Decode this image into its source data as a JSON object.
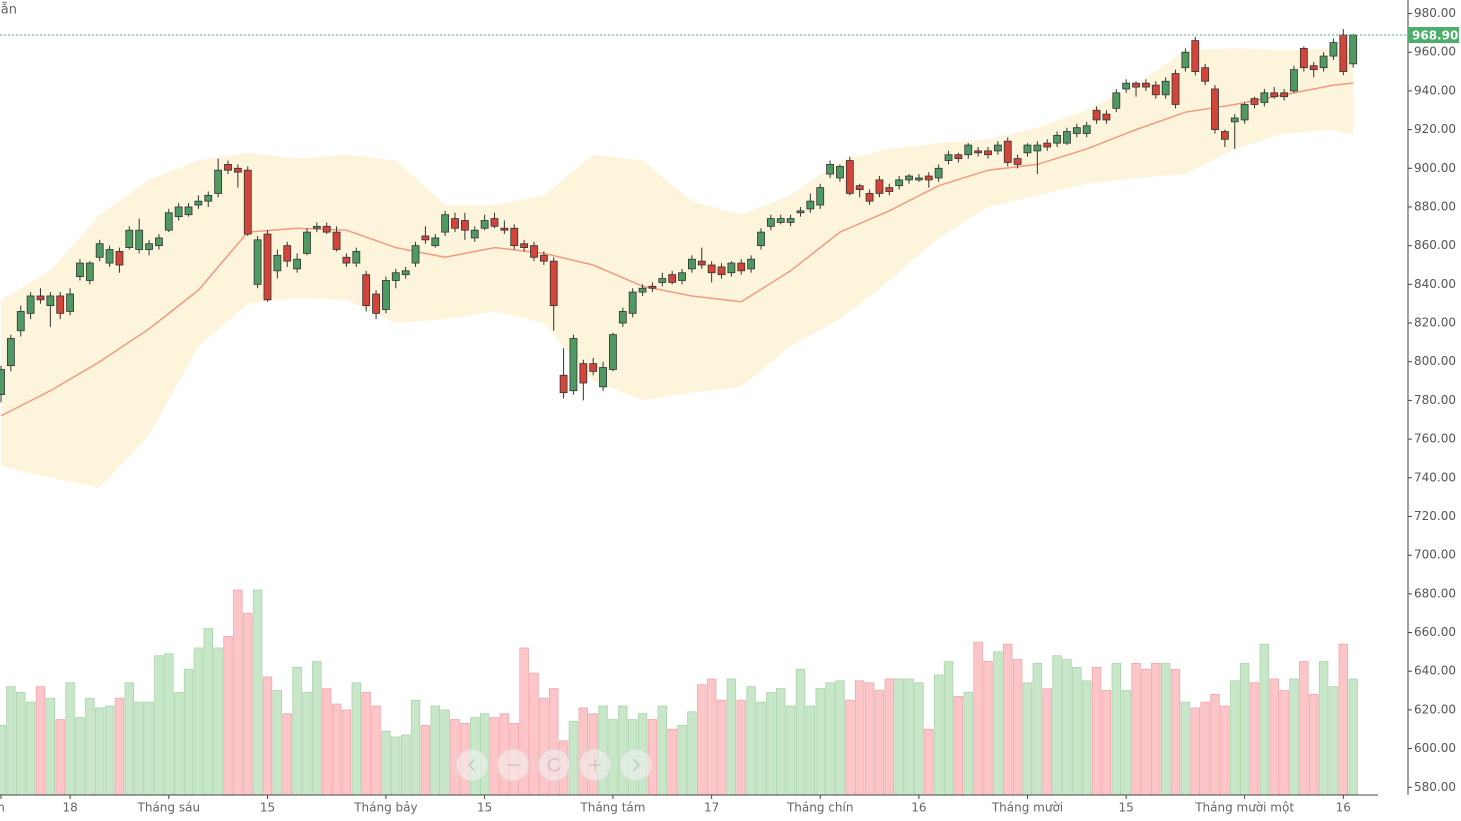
{
  "chart_data": {
    "type": "candlestick",
    "title": "sẵn",
    "categories": [
      "n",
      null,
      null,
      null,
      null,
      null,
      null,
      "18",
      null,
      null,
      null,
      null,
      null,
      null,
      null,
      null,
      null,
      "Tháng sáu",
      null,
      null,
      null,
      null,
      null,
      null,
      null,
      null,
      null,
      "15",
      null,
      null,
      null,
      null,
      null,
      null,
      null,
      null,
      null,
      null,
      null,
      "Tháng bảy",
      null,
      null,
      null,
      null,
      null,
      null,
      null,
      null,
      null,
      "15",
      null,
      null,
      null,
      null,
      null,
      null,
      null,
      null,
      null,
      null,
      null,
      null,
      "Tháng tám",
      null,
      null,
      null,
      null,
      null,
      null,
      null,
      null,
      null,
      "17",
      null,
      null,
      null,
      null,
      null,
      null,
      null,
      null,
      null,
      null,
      "Tháng chín",
      null,
      null,
      null,
      null,
      null,
      null,
      null,
      null,
      null,
      "16",
      null,
      null,
      null,
      null,
      null,
      null,
      null,
      null,
      null,
      null,
      "Tháng mười",
      null,
      null,
      null,
      null,
      null,
      null,
      null,
      null,
      null,
      "15",
      null,
      null,
      null,
      null,
      null,
      null,
      null,
      null,
      null,
      null,
      null,
      "Tháng mười một",
      null,
      null,
      null,
      null,
      null,
      null,
      null,
      null,
      null,
      "16",
      null
    ],
    "ohlc": [
      [
        783,
        798,
        779,
        796
      ],
      [
        798,
        814,
        795,
        812
      ],
      [
        816,
        829,
        813,
        826
      ],
      [
        825,
        836,
        822,
        834
      ],
      [
        834,
        838,
        830,
        832
      ],
      [
        829,
        836,
        818,
        834
      ],
      [
        834,
        836,
        822,
        825
      ],
      [
        826,
        838,
        824,
        835
      ],
      [
        844,
        853,
        842,
        851
      ],
      [
        842,
        852,
        840,
        851
      ],
      [
        854,
        863,
        852,
        861
      ],
      [
        851,
        860,
        849,
        858
      ],
      [
        857,
        859,
        846,
        850
      ],
      [
        859,
        870,
        858,
        868
      ],
      [
        858,
        874,
        856,
        868
      ],
      [
        858,
        863,
        855,
        861
      ],
      [
        860,
        866,
        858,
        864
      ],
      [
        868,
        879,
        867,
        877
      ],
      [
        875,
        882,
        873,
        880
      ],
      [
        876,
        882,
        875,
        880
      ],
      [
        881,
        886,
        879,
        883
      ],
      [
        883,
        888,
        880,
        886
      ],
      [
        887,
        905,
        885,
        899
      ],
      [
        902,
        904,
        897,
        899
      ],
      [
        900,
        902,
        890,
        898
      ],
      [
        899,
        901,
        865,
        866
      ],
      [
        840,
        865,
        838,
        863
      ],
      [
        866,
        868,
        831,
        832
      ],
      [
        847,
        858,
        843,
        855
      ],
      [
        860,
        862,
        849,
        852
      ],
      [
        848,
        856,
        846,
        853
      ],
      [
        856,
        869,
        855,
        867
      ],
      [
        869,
        872,
        867,
        870
      ],
      [
        870,
        872,
        866,
        867
      ],
      [
        867,
        870,
        857,
        858
      ],
      [
        854,
        856,
        849,
        851
      ],
      [
        851,
        859,
        849,
        857
      ],
      [
        845,
        847,
        826,
        829
      ],
      [
        835,
        837,
        822,
        825
      ],
      [
        827,
        844,
        825,
        842
      ],
      [
        842,
        848,
        838,
        846
      ],
      [
        845,
        849,
        843,
        847
      ],
      [
        851,
        862,
        849,
        860
      ],
      [
        865,
        870,
        861,
        863
      ],
      [
        860,
        866,
        859,
        864
      ],
      [
        867,
        878,
        865,
        876
      ],
      [
        874,
        877,
        867,
        869
      ],
      [
        873,
        877,
        863,
        868
      ],
      [
        864,
        870,
        862,
        868
      ],
      [
        869,
        876,
        868,
        873
      ],
      [
        874,
        877,
        869,
        870
      ],
      [
        869,
        873,
        866,
        868
      ],
      [
        869,
        871,
        858,
        860
      ],
      [
        861,
        863,
        857,
        859
      ],
      [
        860,
        862,
        852,
        854
      ],
      [
        855,
        857,
        850,
        852
      ],
      [
        852,
        854,
        816,
        829
      ],
      [
        793,
        807,
        781,
        784
      ],
      [
        785,
        814,
        783,
        812
      ],
      [
        799,
        801,
        780,
        789
      ],
      [
        799,
        802,
        793,
        795
      ],
      [
        787,
        800,
        785,
        797
      ],
      [
        796,
        815,
        795,
        814
      ],
      [
        820,
        828,
        818,
        826
      ],
      [
        825,
        838,
        823,
        836
      ],
      [
        836,
        840,
        834,
        838
      ],
      [
        839,
        841,
        836,
        838
      ],
      [
        841,
        846,
        839,
        843
      ],
      [
        845,
        847,
        840,
        841
      ],
      [
        842,
        848,
        840,
        846
      ],
      [
        848,
        855,
        846,
        853
      ],
      [
        852,
        859,
        848,
        850
      ],
      [
        850,
        852,
        841,
        846
      ],
      [
        849,
        851,
        843,
        845
      ],
      [
        846,
        852,
        844,
        851
      ],
      [
        851,
        853,
        845,
        847
      ],
      [
        848,
        855,
        846,
        853
      ],
      [
        860,
        869,
        858,
        867
      ],
      [
        870,
        876,
        868,
        874
      ],
      [
        872,
        876,
        871,
        874
      ],
      [
        872,
        876,
        870,
        874
      ],
      [
        877,
        880,
        875,
        878
      ],
      [
        879,
        887,
        877,
        883
      ],
      [
        881,
        892,
        879,
        890
      ],
      [
        897,
        904,
        895,
        902
      ],
      [
        895,
        902,
        893,
        901
      ],
      [
        904,
        906,
        886,
        887
      ],
      [
        891,
        892,
        885,
        889
      ],
      [
        887,
        889,
        881,
        883
      ],
      [
        894,
        896,
        885,
        887
      ],
      [
        890,
        892,
        886,
        888
      ],
      [
        891,
        896,
        889,
        894
      ],
      [
        894,
        897,
        892,
        896
      ],
      [
        894,
        897,
        893,
        895
      ],
      [
        896,
        898,
        890,
        894
      ],
      [
        895,
        902,
        893,
        900
      ],
      [
        904,
        909,
        902,
        907
      ],
      [
        907,
        908,
        903,
        905
      ],
      [
        907,
        913,
        905,
        912
      ],
      [
        909,
        911,
        906,
        908
      ],
      [
        909,
        911,
        905,
        907
      ],
      [
        909,
        914,
        907,
        912
      ],
      [
        914,
        916,
        901,
        903
      ],
      [
        905,
        907,
        900,
        902
      ],
      [
        908,
        913,
        906,
        912
      ],
      [
        909,
        914,
        897,
        912
      ],
      [
        913,
        915,
        909,
        911
      ],
      [
        913,
        919,
        911,
        917
      ],
      [
        913,
        921,
        912,
        919
      ],
      [
        918,
        923,
        916,
        921
      ],
      [
        918,
        924,
        916,
        922
      ],
      [
        930,
        932,
        923,
        925
      ],
      [
        928,
        930,
        923,
        925
      ],
      [
        931,
        941,
        929,
        939
      ],
      [
        941,
        946,
        939,
        944
      ],
      [
        944,
        945,
        937,
        942
      ],
      [
        944,
        946,
        940,
        942
      ],
      [
        943,
        945,
        936,
        938
      ],
      [
        938,
        947,
        936,
        945
      ],
      [
        949,
        951,
        931,
        933
      ],
      [
        952,
        962,
        950,
        960
      ],
      [
        966,
        968,
        948,
        950
      ],
      [
        952,
        954,
        943,
        945
      ],
      [
        941,
        943,
        918,
        920
      ],
      [
        919,
        920,
        911,
        915
      ],
      [
        924,
        928,
        910,
        926
      ],
      [
        925,
        934,
        923,
        933
      ],
      [
        936,
        937,
        931,
        933
      ],
      [
        934,
        941,
        932,
        939
      ],
      [
        939,
        942,
        936,
        937
      ],
      [
        939,
        941,
        935,
        937
      ],
      [
        940,
        953,
        939,
        951
      ],
      [
        962,
        963,
        950,
        952
      ],
      [
        953,
        955,
        947,
        951
      ],
      [
        952,
        960,
        950,
        958
      ],
      [
        958,
        967,
        956,
        965
      ],
      [
        969,
        972,
        948,
        950
      ],
      [
        954,
        969.5,
        952,
        968.9
      ]
    ],
    "volume": [
      612,
      632,
      629,
      624,
      632,
      626,
      615,
      634,
      616,
      626,
      621,
      622,
      626,
      634,
      624,
      624,
      648,
      649,
      629,
      641,
      652,
      662,
      652,
      658,
      682,
      670,
      682,
      637,
      630,
      618,
      642,
      629,
      645,
      631,
      623,
      620,
      634,
      629,
      622,
      609,
      606,
      607,
      625,
      612,
      622,
      620,
      615,
      613,
      616,
      618,
      616,
      618,
      613,
      652,
      639,
      626,
      631,
      604,
      614,
      621,
      618,
      622,
      615,
      622,
      615,
      618,
      615,
      622,
      610,
      612,
      619,
      633,
      636,
      625,
      636,
      625,
      632,
      624,
      629,
      631,
      622,
      641,
      622,
      631,
      634,
      635,
      625,
      635,
      634,
      630,
      636,
      636,
      636,
      634,
      610,
      638,
      645,
      627,
      629,
      655,
      645,
      650,
      654,
      646,
      634,
      644,
      631,
      648,
      646,
      642,
      635,
      642,
      630,
      644,
      630,
      644,
      641,
      644,
      644,
      641,
      624,
      621,
      624,
      628,
      622,
      635,
      644,
      634,
      654,
      636,
      630,
      636,
      645,
      628,
      645,
      632,
      654,
      636
    ],
    "bands": {
      "x": [
        0,
        5,
        10,
        15,
        20,
        25,
        30,
        35,
        40,
        45,
        50,
        55,
        60,
        65,
        70,
        75,
        80,
        85,
        90,
        95,
        100,
        105,
        110,
        115,
        120,
        125,
        130,
        135,
        137
      ],
      "upper": [
        832,
        847,
        876,
        894,
        904,
        908,
        905,
        907,
        904,
        881,
        881,
        886,
        907,
        904,
        883,
        876,
        886,
        904,
        910,
        913,
        915,
        921,
        930,
        943,
        961,
        962,
        961,
        962,
        963
      ],
      "middle": [
        772,
        785,
        800,
        817,
        837,
        867,
        869,
        868,
        859,
        854,
        859,
        856,
        850,
        839,
        834,
        831,
        847,
        867,
        878,
        891,
        899,
        902,
        910,
        920,
        929,
        933,
        938,
        943,
        944
      ],
      "lower": [
        746,
        740,
        735,
        762,
        808,
        830,
        833,
        832,
        820,
        822,
        826,
        820,
        790,
        780,
        784,
        787,
        808,
        822,
        842,
        864,
        880,
        886,
        892,
        895,
        897,
        910,
        918,
        920,
        917
      ],
      "fill_color": "#fdf4dc",
      "middle_color": "#f29a82"
    },
    "last_price": {
      "value": 968.9,
      "label": "968.90",
      "color": "#4cae6b"
    },
    "up_color": "#4f9a62",
    "down_color": "#d2453a",
    "volume_up_color": "#c8e6c8",
    "volume_down_color": "#fcc6c9",
    "ylim": [
      576,
      987
    ],
    "yticks": [
      {
        "value": 980,
        "label": "980.00"
      },
      {
        "value": 960,
        "label": "960.00"
      },
      {
        "value": 940,
        "label": "940.00"
      },
      {
        "value": 920,
        "label": "920.00"
      },
      {
        "value": 900,
        "label": "900.00"
      },
      {
        "value": 880,
        "label": "880.00"
      },
      {
        "value": 860,
        "label": "860.00"
      },
      {
        "value": 840,
        "label": "840.00"
      },
      {
        "value": 820,
        "label": "820.00"
      },
      {
        "value": 800,
        "label": "800.00"
      },
      {
        "value": 780,
        "label": "780.00"
      },
      {
        "value": 760,
        "label": "760.00"
      },
      {
        "value": 740,
        "label": "740.00"
      },
      {
        "value": 720,
        "label": "720.00"
      },
      {
        "value": 700,
        "label": "700.00"
      },
      {
        "value": 680,
        "label": "680.00"
      },
      {
        "value": 660,
        "label": "660.00"
      },
      {
        "value": 640,
        "label": "640.00"
      },
      {
        "value": 620,
        "label": "620.00"
      },
      {
        "value": 600,
        "label": "600.00"
      },
      {
        "value": 580,
        "label": "580.00"
      }
    ]
  }
}
